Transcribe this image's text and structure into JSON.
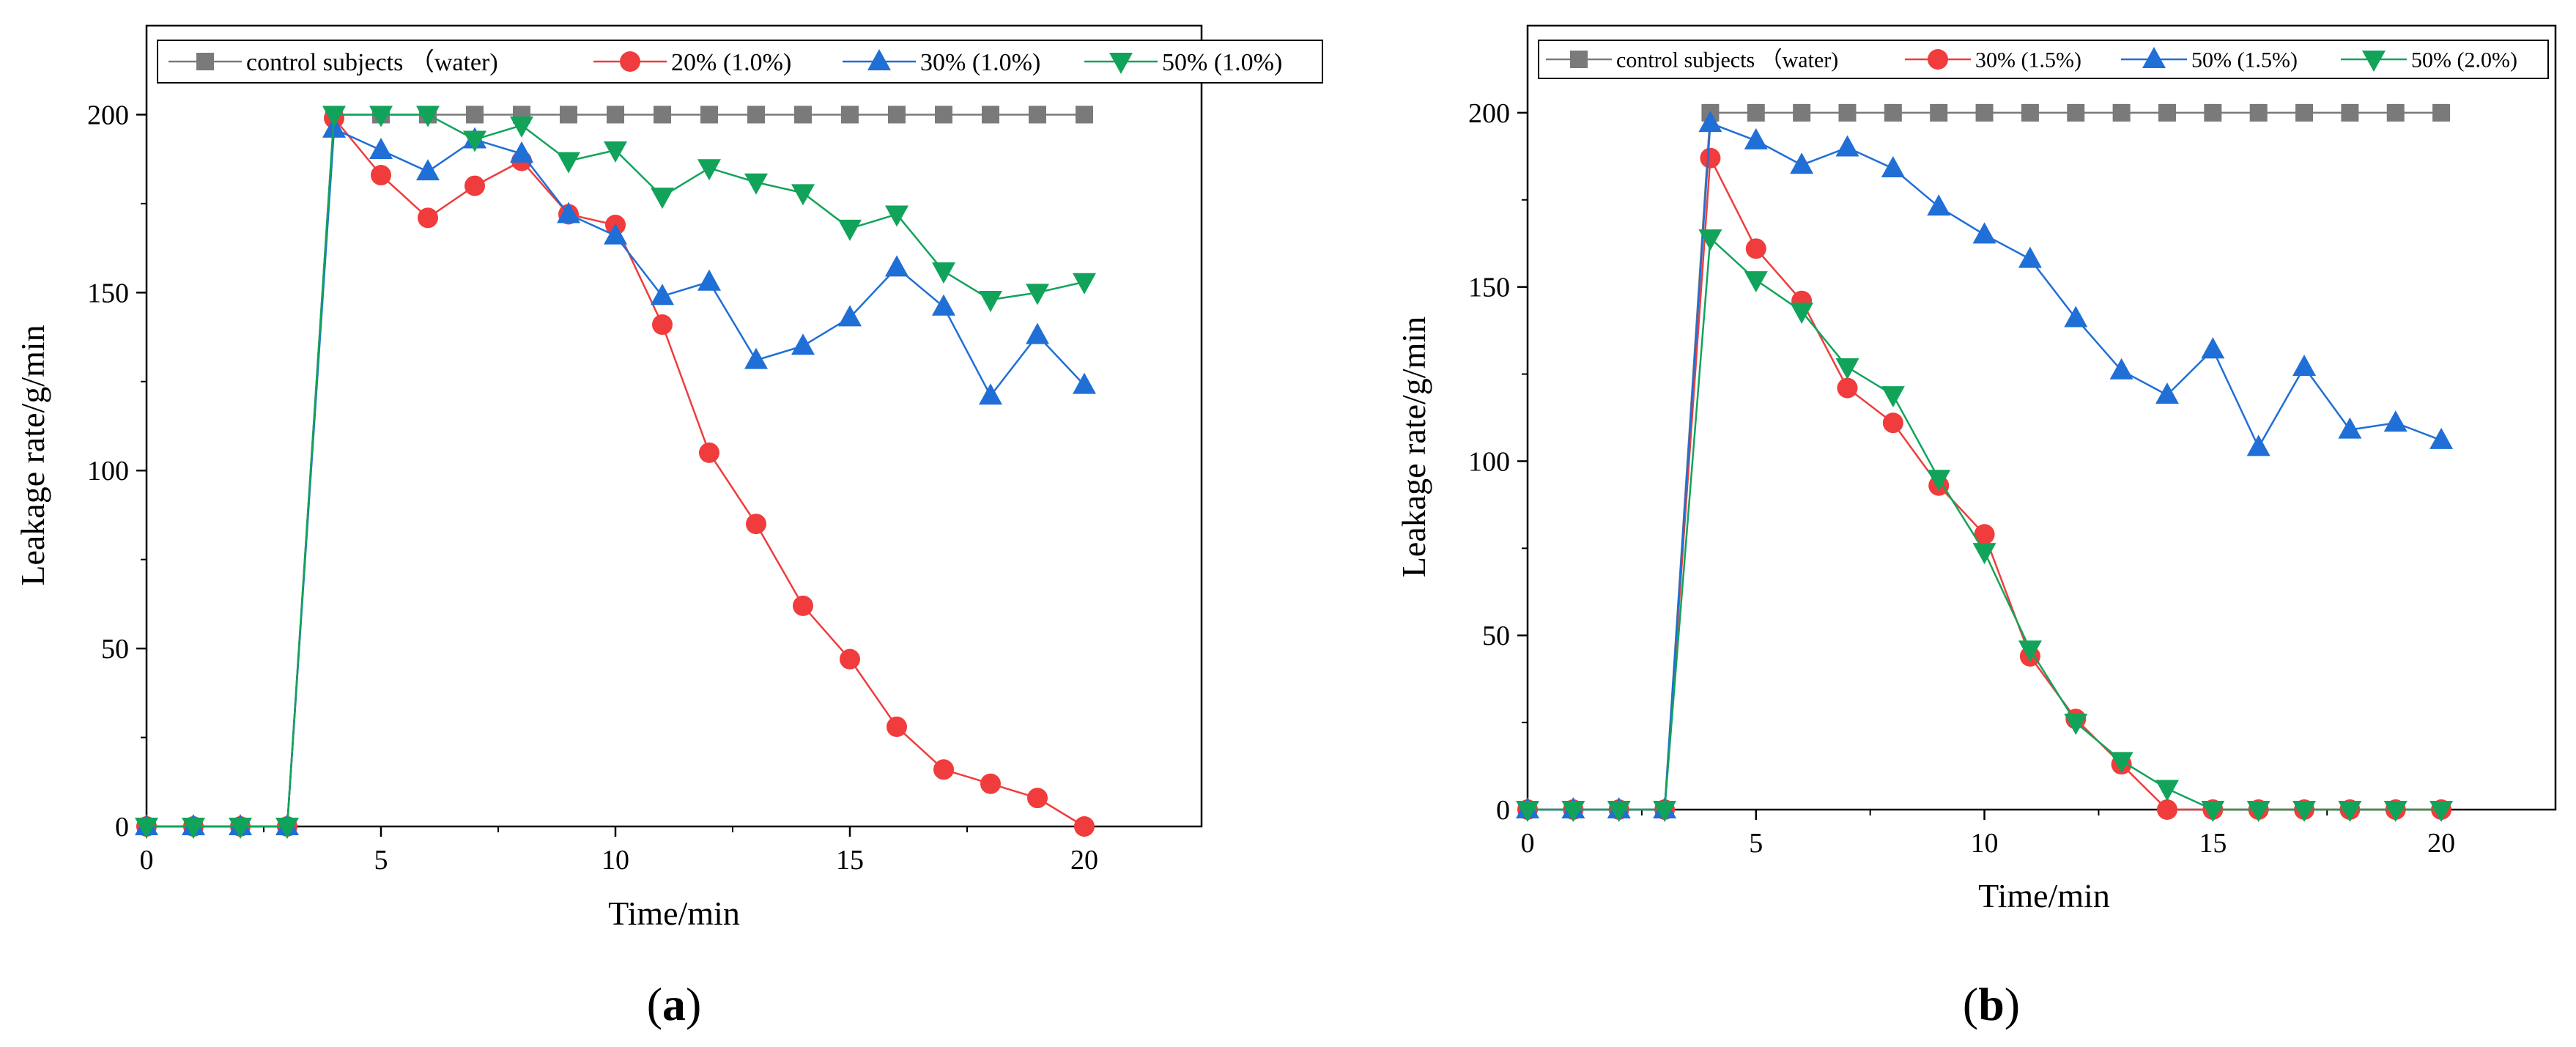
{
  "figure": {
    "panel_labels": [
      {
        "open": "(",
        "letter": "a",
        "close": ")"
      },
      {
        "open": "(",
        "letter": "b",
        "close": ")"
      }
    ]
  },
  "chart_data": [
    {
      "type": "line",
      "panel": "a",
      "xlabel": "Time/min",
      "ylabel": "Leakage rate/g/min",
      "xlim": [
        0,
        22.5
      ],
      "ylim": [
        0,
        225
      ],
      "xticks": [
        0,
        5,
        10,
        15,
        20
      ],
      "yticks": [
        0,
        50,
        100,
        150,
        200
      ],
      "grid": false,
      "legend_position": "top",
      "x": [
        0,
        1,
        2,
        3,
        4,
        5,
        6,
        7,
        8,
        9,
        10,
        11,
        12,
        13,
        14,
        15,
        16,
        17,
        18,
        19,
        20
      ],
      "series": [
        {
          "name": "control subjects （water)",
          "color": "#7a7a7a",
          "marker": "square",
          "values": [
            0,
            0,
            0,
            0,
            200,
            200,
            200,
            200,
            200,
            200,
            200,
            200,
            200,
            200,
            200,
            200,
            200,
            200,
            200,
            200,
            200
          ]
        },
        {
          "name": "20% (1.0%)",
          "color": "#f03c3c",
          "marker": "circle",
          "values": [
            0,
            0,
            0,
            0,
            199,
            183,
            171,
            180,
            187,
            172,
            169,
            141,
            105,
            85,
            62,
            47,
            28,
            16,
            12,
            8,
            0
          ]
        },
        {
          "name": "30% (1.0%)",
          "color": "#1f6fd6",
          "marker": "triangle-up",
          "values": [
            0,
            0,
            0,
            0,
            196,
            190,
            184,
            193,
            189,
            172,
            166,
            149,
            153,
            131,
            135,
            143,
            157,
            146,
            121,
            138,
            124
          ]
        },
        {
          "name": "50% (1.0%)",
          "color": "#12a35a",
          "marker": "triangle-down",
          "values": [
            0,
            0,
            0,
            0,
            200,
            200,
            200,
            193,
            197,
            187,
            190,
            177,
            185,
            181,
            178,
            168,
            172,
            156,
            148,
            150,
            153
          ]
        }
      ]
    },
    {
      "type": "line",
      "panel": "b",
      "xlabel": "Time/min",
      "ylabel": "Leakage rate/g/min",
      "xlim": [
        0,
        22.5
      ],
      "ylim": [
        0,
        225
      ],
      "xticks": [
        0,
        5,
        10,
        15,
        20
      ],
      "yticks": [
        0,
        50,
        100,
        150,
        200
      ],
      "grid": false,
      "legend_position": "top",
      "x": [
        0,
        1,
        2,
        3,
        4,
        5,
        6,
        7,
        8,
        9,
        10,
        11,
        12,
        13,
        14,
        15,
        16,
        17,
        18,
        19,
        20
      ],
      "series": [
        {
          "name": "control subjects （water)",
          "color": "#7a7a7a",
          "marker": "square",
          "values": [
            0,
            0,
            0,
            0,
            200,
            200,
            200,
            200,
            200,
            200,
            200,
            200,
            200,
            200,
            200,
            200,
            200,
            200,
            200,
            200,
            200
          ]
        },
        {
          "name": "30% (1.5%)",
          "color": "#f03c3c",
          "marker": "circle",
          "values": [
            0,
            0,
            0,
            0,
            187,
            161,
            146,
            121,
            111,
            93,
            79,
            44,
            26,
            13,
            0,
            0,
            0,
            0,
            0,
            0,
            0
          ]
        },
        {
          "name": "50% (1.5%)",
          "color": "#1f6fd6",
          "marker": "triangle-up",
          "values": [
            0,
            0,
            0,
            0,
            197,
            192,
            185,
            190,
            184,
            173,
            165,
            158,
            141,
            126,
            119,
            132,
            104,
            127,
            109,
            111,
            106
          ]
        },
        {
          "name": "50% (2.0%)",
          "color": "#12a35a",
          "marker": "triangle-down",
          "values": [
            0,
            0,
            0,
            0,
            164,
            152,
            143,
            127,
            119,
            95,
            74,
            46,
            25,
            14,
            6,
            0,
            0,
            0,
            0,
            0,
            0
          ]
        }
      ]
    }
  ]
}
